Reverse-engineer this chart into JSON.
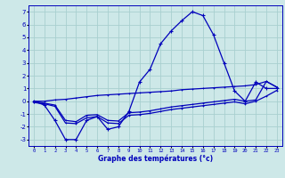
{
  "xlabel": "Graphe des températures (°c)",
  "background_color": "#cde8e8",
  "grid_color": "#a8d0d0",
  "line_color": "#0000bb",
  "x_hours": [
    0,
    1,
    2,
    3,
    4,
    5,
    6,
    7,
    8,
    9,
    10,
    11,
    12,
    13,
    14,
    15,
    16,
    17,
    18,
    19,
    20,
    21,
    22,
    23
  ],
  "temp_main": [
    0.0,
    -0.3,
    -1.5,
    -3.0,
    -3.0,
    -1.5,
    -1.2,
    -2.2,
    -2.0,
    -0.8,
    1.5,
    2.5,
    4.5,
    5.5,
    6.3,
    7.0,
    6.7,
    5.2,
    3.0,
    0.8,
    0.0,
    1.5,
    1.0,
    1.0
  ],
  "line_top": [
    0.0,
    0.0,
    0.1,
    0.15,
    0.25,
    0.35,
    0.45,
    0.5,
    0.55,
    0.6,
    0.65,
    0.7,
    0.75,
    0.8,
    0.9,
    0.95,
    1.0,
    1.05,
    1.1,
    1.15,
    1.2,
    1.3,
    1.55,
    1.1
  ],
  "line_mid": [
    0.0,
    -0.15,
    -0.3,
    -1.5,
    -1.6,
    -1.1,
    -1.05,
    -1.5,
    -1.55,
    -0.9,
    -0.85,
    -0.75,
    -0.6,
    -0.45,
    -0.35,
    -0.25,
    -0.15,
    -0.05,
    0.05,
    0.15,
    0.0,
    0.1,
    1.55,
    1.1
  ],
  "line_bot": [
    -0.1,
    -0.2,
    -0.4,
    -1.7,
    -1.75,
    -1.3,
    -1.2,
    -1.7,
    -1.75,
    -1.1,
    -1.05,
    -0.95,
    -0.8,
    -0.65,
    -0.55,
    -0.45,
    -0.35,
    -0.25,
    -0.15,
    -0.05,
    -0.2,
    0.0,
    0.4,
    0.85
  ],
  "ylim": [
    -3.5,
    7.5
  ],
  "xlim": [
    -0.5,
    23.5
  ],
  "yticks": [
    -3,
    -2,
    -1,
    0,
    1,
    2,
    3,
    4,
    5,
    6,
    7
  ],
  "xticks": [
    0,
    1,
    2,
    3,
    4,
    5,
    6,
    7,
    8,
    9,
    10,
    11,
    12,
    13,
    14,
    15,
    16,
    17,
    18,
    19,
    20,
    21,
    22,
    23
  ]
}
